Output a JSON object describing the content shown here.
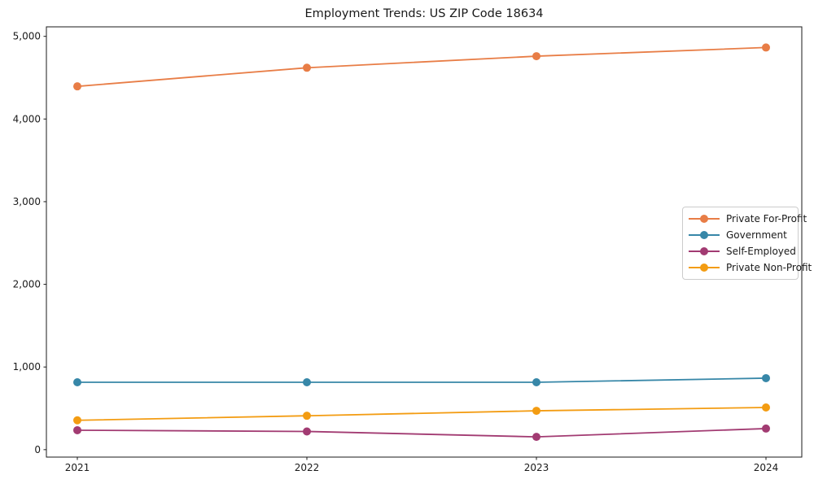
{
  "chart_data": {
    "type": "line",
    "title": "Employment Trends: US ZIP Code 18634",
    "xlabel": "",
    "ylabel": "",
    "grid": false,
    "legend_position": "center right",
    "x": [
      2021,
      2022,
      2023,
      2024
    ],
    "x_tick_labels": [
      "2021",
      "2022",
      "2023",
      "2024"
    ],
    "y_ticks": [
      0,
      1000,
      2000,
      3000,
      4000,
      5000
    ],
    "y_tick_labels": [
      "0",
      "1,000",
      "2,000",
      "3,000",
      "4,000",
      "5,000"
    ],
    "ylim": [
      -90,
      5115
    ],
    "marker": "o",
    "series": [
      {
        "name": "Private For-Profit",
        "color": "#E87D46",
        "values": [
          4395,
          4620,
          4760,
          4865
        ]
      },
      {
        "name": "Government",
        "color": "#3787A8",
        "values": [
          815,
          815,
          815,
          865
        ]
      },
      {
        "name": "Self-Employed",
        "color": "#A23B72",
        "values": [
          235,
          220,
          155,
          255
        ]
      },
      {
        "name": "Private Non-Profit",
        "color": "#F39C12",
        "values": [
          355,
          410,
          470,
          510
        ]
      }
    ]
  }
}
